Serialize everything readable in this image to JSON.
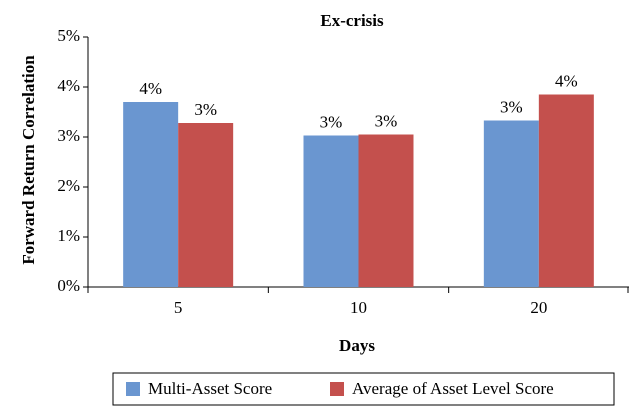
{
  "chart_data": {
    "type": "bar",
    "title": "Ex-crisis",
    "x_label": "Days",
    "y_label": "Forward Return Correlation",
    "categories": [
      "5",
      "10",
      "20"
    ],
    "series": [
      {
        "name": "Multi-Asset Score",
        "color": "#6a96d0",
        "values": [
          3.7,
          3.03,
          3.33
        ],
        "value_labels": [
          "4%",
          "3%",
          "3%"
        ]
      },
      {
        "name": "Average of Asset Level Score",
        "color": "#c4504d",
        "values": [
          3.28,
          3.05,
          3.85
        ],
        "value_labels": [
          "3%",
          "3%",
          "4%"
        ]
      }
    ],
    "ylim": [
      0,
      5
    ],
    "yticks": [
      {
        "value": 0,
        "label": "0%"
      },
      {
        "value": 1,
        "label": "1%"
      },
      {
        "value": 2,
        "label": "2%"
      },
      {
        "value": 3,
        "label": "3%"
      },
      {
        "value": 4,
        "label": "4%"
      },
      {
        "value": 5,
        "label": "5%"
      }
    ],
    "legend": "bottom",
    "grid": false
  }
}
